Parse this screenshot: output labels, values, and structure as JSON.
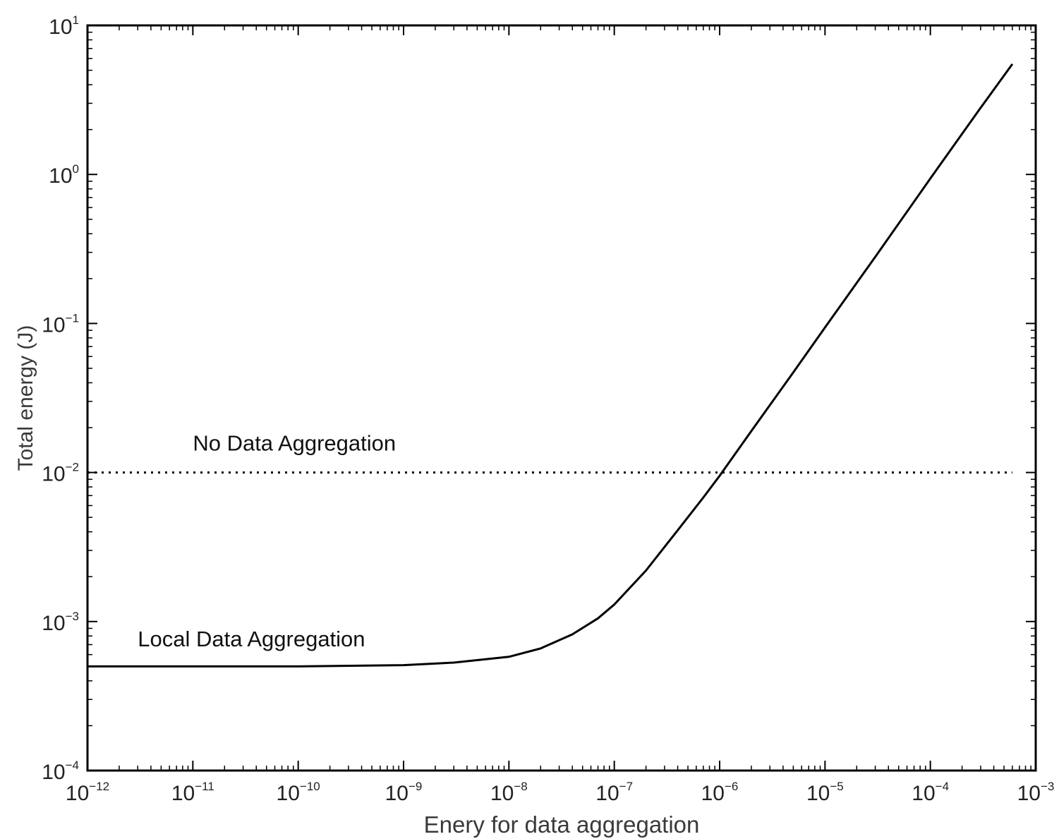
{
  "chart_data": {
    "type": "line",
    "title": "",
    "xlabel": "Enery for data aggregation",
    "ylabel": "Total energy (J)",
    "x_scale": "log",
    "y_scale": "log",
    "xlim": [
      1e-12,
      0.001
    ],
    "ylim": [
      0.0001,
      10
    ],
    "grid": false,
    "x_ticks": [
      {
        "base": "10",
        "exp": "−12"
      },
      {
        "base": "10",
        "exp": "−11"
      },
      {
        "base": "10",
        "exp": "−10"
      },
      {
        "base": "10",
        "exp": "−9"
      },
      {
        "base": "10",
        "exp": "−8"
      },
      {
        "base": "10",
        "exp": "−7"
      },
      {
        "base": "10",
        "exp": "−6"
      },
      {
        "base": "10",
        "exp": "−5"
      },
      {
        "base": "10",
        "exp": "−4"
      },
      {
        "base": "10",
        "exp": "−3"
      }
    ],
    "y_ticks": [
      {
        "base": "10",
        "exp": "−4"
      },
      {
        "base": "10",
        "exp": "−3"
      },
      {
        "base": "10",
        "exp": "−2"
      },
      {
        "base": "10",
        "exp": "−1"
      },
      {
        "base": "10",
        "exp": "0"
      },
      {
        "base": "10",
        "exp": "1"
      }
    ],
    "series": [
      {
        "name": "Local Data Aggregation",
        "style": "solid",
        "color": "#000000",
        "x": [
          1e-12,
          1e-11,
          1e-10,
          1e-09,
          3e-09,
          1e-08,
          2e-08,
          4e-08,
          7e-08,
          1e-07,
          2e-07,
          4e-07,
          7e-07,
          1e-06,
          2e-06,
          5e-06,
          1e-05,
          3e-05,
          0.0001,
          0.0003,
          0.0006
        ],
        "y": [
          0.0005,
          0.0005,
          0.0005,
          0.00051,
          0.00053,
          0.00058,
          0.00066,
          0.00082,
          0.00105,
          0.0013,
          0.0022,
          0.0041,
          0.0068,
          0.0095,
          0.019,
          0.047,
          0.094,
          0.28,
          0.94,
          2.8,
          5.5
        ]
      },
      {
        "name": "No Data Aggregation",
        "style": "dotted",
        "color": "#000000",
        "x": [
          1e-12,
          0.0006
        ],
        "y": [
          0.01,
          0.01
        ]
      }
    ],
    "annotations": [
      {
        "text": "No Data Aggregation",
        "x": 1e-11,
        "y": 0.014
      },
      {
        "text": "Local Data Aggregation",
        "x": 3e-12,
        "y": 0.00068
      }
    ]
  }
}
